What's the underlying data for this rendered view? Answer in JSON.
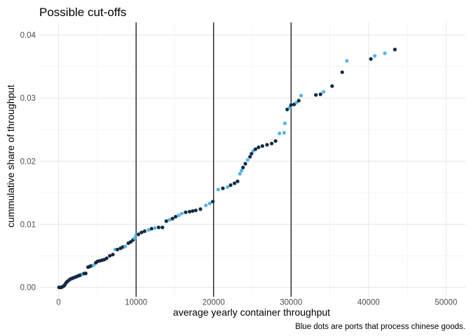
{
  "colors": {
    "chinese": "#56B4E9",
    "other": "#132B43",
    "cutoff": "#000000",
    "grid": "#e6e6e6"
  },
  "chart_data": {
    "type": "scatter",
    "title": "Possible cut-offs",
    "xlabel": "average yearly container throughput",
    "ylabel": "cummulative share of throughput",
    "caption": "Blue dots are ports that process chinese goods.",
    "xlim": [
      -2500,
      52500
    ],
    "ylim": [
      -0.0015,
      0.042
    ],
    "xticks": [
      0,
      10000,
      20000,
      30000,
      40000,
      50000
    ],
    "yticks": [
      0.0,
      0.01,
      0.02,
      0.03,
      0.04
    ],
    "xtick_labels": [
      "0",
      "10000",
      "20000",
      "30000",
      "40000",
      "50000"
    ],
    "ytick_labels": [
      "0.00",
      "0.01",
      "0.02",
      "0.03",
      "0.04"
    ],
    "grid": true,
    "legend": "none",
    "cutoff_lines": [
      10000,
      20000,
      30000
    ],
    "points": [
      {
        "x": 50,
        "y": 0.0,
        "c": "other"
      },
      {
        "x": 200,
        "y": 0.0,
        "c": "other"
      },
      {
        "x": 350,
        "y": 0.0,
        "c": "other"
      },
      {
        "x": 500,
        "y": 0.0001,
        "c": "other"
      },
      {
        "x": 650,
        "y": 0.0002,
        "c": "other"
      },
      {
        "x": 800,
        "y": 0.0004,
        "c": "other"
      },
      {
        "x": 950,
        "y": 0.0007,
        "c": "other"
      },
      {
        "x": 1100,
        "y": 0.0009,
        "c": "other"
      },
      {
        "x": 1300,
        "y": 0.0011,
        "c": "other"
      },
      {
        "x": 1500,
        "y": 0.0013,
        "c": "other"
      },
      {
        "x": 1700,
        "y": 0.0014,
        "c": "other"
      },
      {
        "x": 1900,
        "y": 0.0015,
        "c": "other"
      },
      {
        "x": 2100,
        "y": 0.0016,
        "c": "other"
      },
      {
        "x": 2300,
        "y": 0.0017,
        "c": "other"
      },
      {
        "x": 2500,
        "y": 0.0018,
        "c": "other"
      },
      {
        "x": 2700,
        "y": 0.0019,
        "c": "other"
      },
      {
        "x": 2900,
        "y": 0.002,
        "c": "other"
      },
      {
        "x": 3100,
        "y": 0.0021,
        "c": "chinese"
      },
      {
        "x": 3300,
        "y": 0.0022,
        "c": "other"
      },
      {
        "x": 3500,
        "y": 0.0022,
        "c": "other"
      },
      {
        "x": 3800,
        "y": 0.0032,
        "c": "other"
      },
      {
        "x": 4000,
        "y": 0.0033,
        "c": "other"
      },
      {
        "x": 4200,
        "y": 0.0034,
        "c": "other"
      },
      {
        "x": 4500,
        "y": 0.0035,
        "c": "chinese"
      },
      {
        "x": 4800,
        "y": 0.0039,
        "c": "other"
      },
      {
        "x": 5000,
        "y": 0.0041,
        "c": "other"
      },
      {
        "x": 5300,
        "y": 0.0042,
        "c": "other"
      },
      {
        "x": 5600,
        "y": 0.0043,
        "c": "other"
      },
      {
        "x": 5900,
        "y": 0.0044,
        "c": "other"
      },
      {
        "x": 6200,
        "y": 0.0046,
        "c": "other"
      },
      {
        "x": 6600,
        "y": 0.005,
        "c": "other"
      },
      {
        "x": 7000,
        "y": 0.0052,
        "c": "other"
      },
      {
        "x": 7300,
        "y": 0.006,
        "c": "chinese"
      },
      {
        "x": 7600,
        "y": 0.006,
        "c": "other"
      },
      {
        "x": 8000,
        "y": 0.0062,
        "c": "other"
      },
      {
        "x": 8300,
        "y": 0.0064,
        "c": "other"
      },
      {
        "x": 8600,
        "y": 0.0065,
        "c": "chinese"
      },
      {
        "x": 9000,
        "y": 0.007,
        "c": "other"
      },
      {
        "x": 9300,
        "y": 0.0072,
        "c": "other"
      },
      {
        "x": 9600,
        "y": 0.0075,
        "c": "other"
      },
      {
        "x": 9800,
        "y": 0.0078,
        "c": "chinese"
      },
      {
        "x": 10000,
        "y": 0.0083,
        "c": "chinese"
      },
      {
        "x": 10300,
        "y": 0.0084,
        "c": "other"
      },
      {
        "x": 10700,
        "y": 0.0087,
        "c": "other"
      },
      {
        "x": 11100,
        "y": 0.0089,
        "c": "other"
      },
      {
        "x": 11600,
        "y": 0.0091,
        "c": "chinese"
      },
      {
        "x": 12000,
        "y": 0.0093,
        "c": "other"
      },
      {
        "x": 12400,
        "y": 0.0094,
        "c": "chinese"
      },
      {
        "x": 12900,
        "y": 0.0095,
        "c": "other"
      },
      {
        "x": 13400,
        "y": 0.0095,
        "c": "other"
      },
      {
        "x": 13900,
        "y": 0.0105,
        "c": "other"
      },
      {
        "x": 14300,
        "y": 0.0107,
        "c": "chinese"
      },
      {
        "x": 14700,
        "y": 0.0109,
        "c": "other"
      },
      {
        "x": 15100,
        "y": 0.0112,
        "c": "other"
      },
      {
        "x": 15500,
        "y": 0.0114,
        "c": "chinese"
      },
      {
        "x": 15900,
        "y": 0.0117,
        "c": "chinese"
      },
      {
        "x": 16400,
        "y": 0.0119,
        "c": "other"
      },
      {
        "x": 16900,
        "y": 0.012,
        "c": "other"
      },
      {
        "x": 17300,
        "y": 0.0121,
        "c": "other"
      },
      {
        "x": 17700,
        "y": 0.0122,
        "c": "other"
      },
      {
        "x": 18300,
        "y": 0.0124,
        "c": "other"
      },
      {
        "x": 19000,
        "y": 0.013,
        "c": "chinese"
      },
      {
        "x": 19500,
        "y": 0.0133,
        "c": "chinese"
      },
      {
        "x": 19900,
        "y": 0.0136,
        "c": "other"
      },
      {
        "x": 20600,
        "y": 0.0155,
        "c": "chinese"
      },
      {
        "x": 21200,
        "y": 0.0157,
        "c": "other"
      },
      {
        "x": 21800,
        "y": 0.0159,
        "c": "chinese"
      },
      {
        "x": 22200,
        "y": 0.0162,
        "c": "other"
      },
      {
        "x": 22700,
        "y": 0.0165,
        "c": "other"
      },
      {
        "x": 23100,
        "y": 0.0168,
        "c": "other"
      },
      {
        "x": 23400,
        "y": 0.018,
        "c": "chinese"
      },
      {
        "x": 23600,
        "y": 0.0185,
        "c": "chinese"
      },
      {
        "x": 23800,
        "y": 0.019,
        "c": "other"
      },
      {
        "x": 24100,
        "y": 0.0196,
        "c": "other"
      },
      {
        "x": 24400,
        "y": 0.0202,
        "c": "chinese"
      },
      {
        "x": 24700,
        "y": 0.0207,
        "c": "other"
      },
      {
        "x": 24900,
        "y": 0.0212,
        "c": "other"
      },
      {
        "x": 25100,
        "y": 0.0216,
        "c": "chinese"
      },
      {
        "x": 25400,
        "y": 0.0219,
        "c": "other"
      },
      {
        "x": 25800,
        "y": 0.0222,
        "c": "other"
      },
      {
        "x": 26300,
        "y": 0.0224,
        "c": "other"
      },
      {
        "x": 26900,
        "y": 0.0226,
        "c": "other"
      },
      {
        "x": 27500,
        "y": 0.0228,
        "c": "other"
      },
      {
        "x": 28000,
        "y": 0.0232,
        "c": "other"
      },
      {
        "x": 28500,
        "y": 0.0244,
        "c": "chinese"
      },
      {
        "x": 29100,
        "y": 0.0245,
        "c": "chinese"
      },
      {
        "x": 29200,
        "y": 0.026,
        "c": "chinese"
      },
      {
        "x": 29500,
        "y": 0.0282,
        "c": "other"
      },
      {
        "x": 29800,
        "y": 0.0285,
        "c": "chinese"
      },
      {
        "x": 30000,
        "y": 0.0289,
        "c": "other"
      },
      {
        "x": 30400,
        "y": 0.029,
        "c": "other"
      },
      {
        "x": 30700,
        "y": 0.0293,
        "c": "chinese"
      },
      {
        "x": 31000,
        "y": 0.0296,
        "c": "other"
      },
      {
        "x": 31300,
        "y": 0.0304,
        "c": "chinese"
      },
      {
        "x": 33200,
        "y": 0.0305,
        "c": "other"
      },
      {
        "x": 33800,
        "y": 0.0306,
        "c": "other"
      },
      {
        "x": 34200,
        "y": 0.031,
        "c": "chinese"
      },
      {
        "x": 35300,
        "y": 0.0319,
        "c": "other"
      },
      {
        "x": 36600,
        "y": 0.0341,
        "c": "other"
      },
      {
        "x": 37200,
        "y": 0.0359,
        "c": "chinese"
      },
      {
        "x": 40300,
        "y": 0.0362,
        "c": "other"
      },
      {
        "x": 40800,
        "y": 0.0367,
        "c": "chinese"
      },
      {
        "x": 42100,
        "y": 0.0371,
        "c": "chinese"
      },
      {
        "x": 43400,
        "y": 0.0377,
        "c": "other"
      }
    ]
  }
}
